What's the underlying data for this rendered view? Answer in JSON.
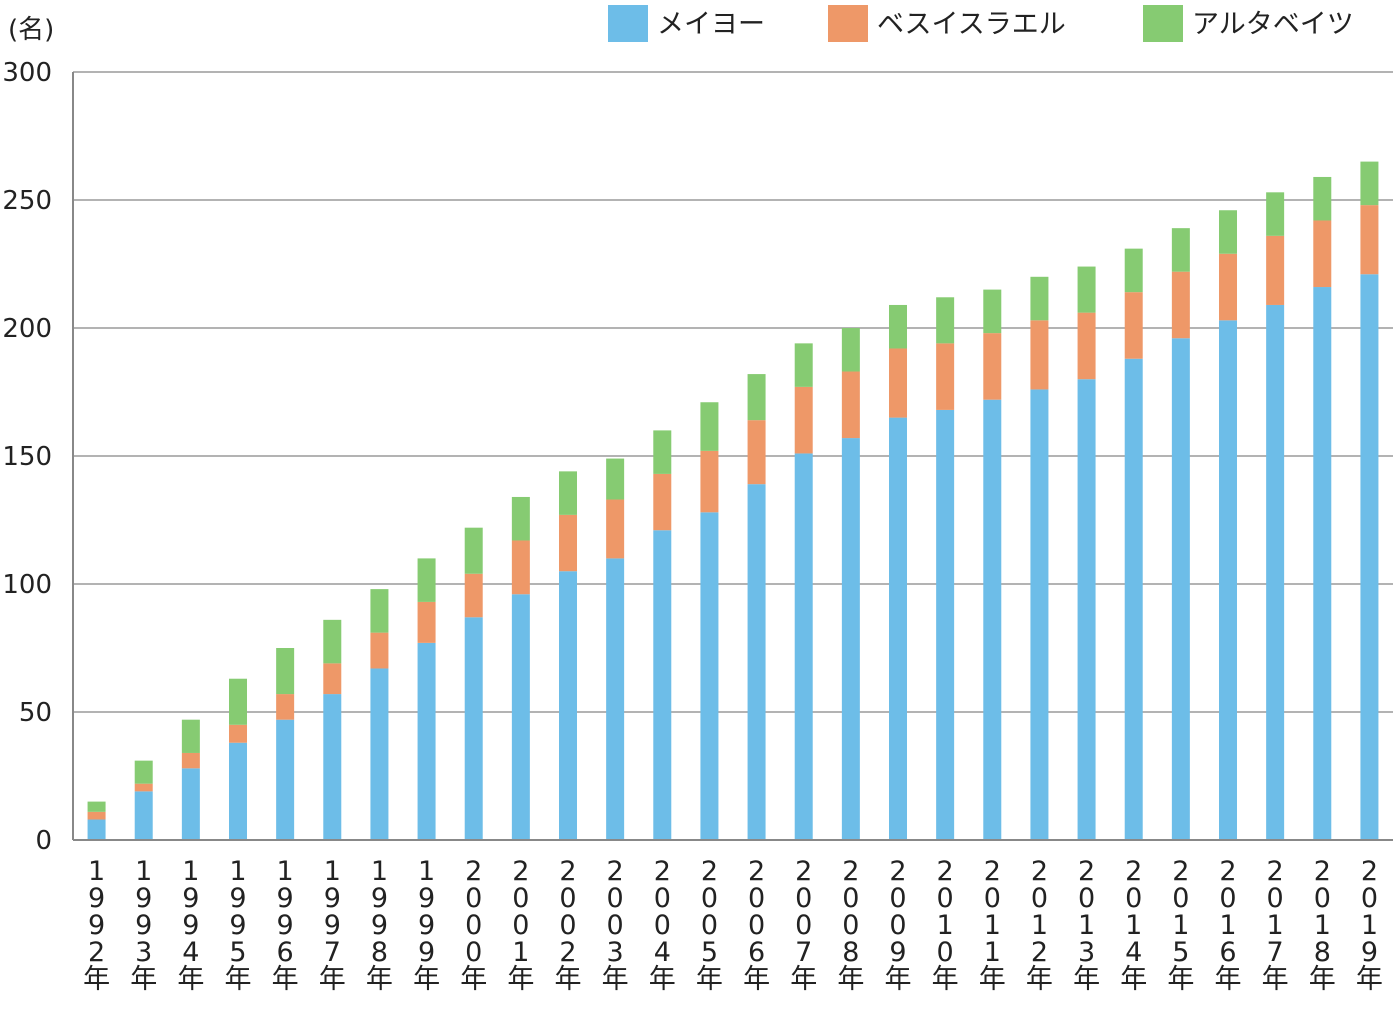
{
  "chart_data": {
    "type": "bar",
    "stacked": true,
    "unit_label": "(名)",
    "ylim": [
      0,
      300
    ],
    "yticks": [
      0,
      50,
      100,
      150,
      200,
      250,
      300
    ],
    "grid": true,
    "legend_position": "top-right",
    "categories": [
      "1992年",
      "1993年",
      "1994年",
      "1995年",
      "1996年",
      "1997年",
      "1998年",
      "1999年",
      "2000年",
      "2001年",
      "2002年",
      "2003年",
      "2004年",
      "2005年",
      "2006年",
      "2007年",
      "2008年",
      "2009年",
      "2010年",
      "2011年",
      "2012年",
      "2013年",
      "2014年",
      "2015年",
      "2016年",
      "2017年",
      "2018年",
      "2019年"
    ],
    "series": [
      {
        "name": "メイヨー",
        "color": "#6dbde8",
        "values": [
          8,
          19,
          28,
          38,
          47,
          57,
          67,
          77,
          87,
          96,
          105,
          110,
          121,
          128,
          139,
          151,
          157,
          165,
          168,
          172,
          176,
          180,
          188,
          196,
          203,
          209,
          216,
          221
        ]
      },
      {
        "name": "ベスイスラエル",
        "color": "#ee9868",
        "values": [
          3,
          3,
          6,
          7,
          10,
          12,
          14,
          16,
          17,
          21,
          22,
          23,
          22,
          24,
          25,
          26,
          26,
          27,
          26,
          26,
          27,
          26,
          26,
          26,
          26,
          27,
          26,
          27
        ]
      },
      {
        "name": "アルタベイツ",
        "color": "#86cb72",
        "values": [
          4,
          9,
          13,
          18,
          18,
          17,
          17,
          17,
          18,
          17,
          17,
          16,
          17,
          19,
          18,
          17,
          17,
          17,
          18,
          17,
          17,
          18,
          17,
          17,
          17,
          17,
          17,
          17
        ]
      }
    ]
  }
}
